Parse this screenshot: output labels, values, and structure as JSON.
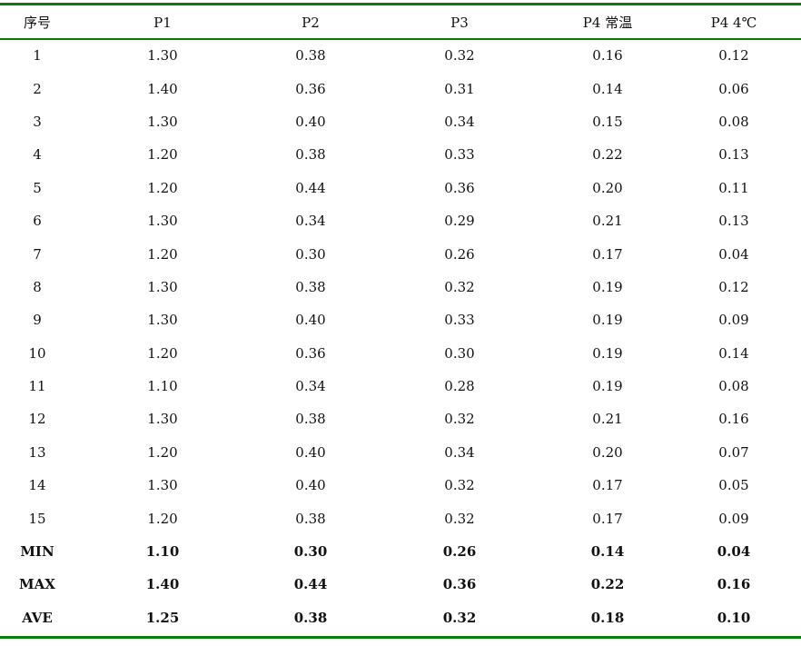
{
  "table": {
    "headers": [
      "序号",
      "P1",
      "P2",
      "P3",
      "P4 常温",
      "P4 4℃"
    ],
    "rows": [
      [
        "1",
        "1.30",
        "0.38",
        "0.32",
        "0.16",
        "0.12"
      ],
      [
        "2",
        "1.40",
        "0.36",
        "0.31",
        "0.14",
        "0.06"
      ],
      [
        "3",
        "1.30",
        "0.40",
        "0.34",
        "0.15",
        "0.08"
      ],
      [
        "4",
        "1.20",
        "0.38",
        "0.33",
        "0.22",
        "0.13"
      ],
      [
        "5",
        "1.20",
        "0.44",
        "0.36",
        "0.20",
        "0.11"
      ],
      [
        "6",
        "1.30",
        "0.34",
        "0.29",
        "0.21",
        "0.13"
      ],
      [
        "7",
        "1.20",
        "0.30",
        "0.26",
        "0.17",
        "0.04"
      ],
      [
        "8",
        "1.30",
        "0.38",
        "0.32",
        "0.19",
        "0.12"
      ],
      [
        "9",
        "1.30",
        "0.40",
        "0.33",
        "0.19",
        "0.09"
      ],
      [
        "10",
        "1.20",
        "0.36",
        "0.30",
        "0.19",
        "0.14"
      ],
      [
        "11",
        "1.10",
        "0.34",
        "0.28",
        "0.19",
        "0.08"
      ],
      [
        "12",
        "1.30",
        "0.38",
        "0.32",
        "0.21",
        "0.16"
      ],
      [
        "13",
        "1.20",
        "0.40",
        "0.34",
        "0.20",
        "0.07"
      ],
      [
        "14",
        "1.30",
        "0.40",
        "0.32",
        "0.17",
        "0.05"
      ],
      [
        "15",
        "1.20",
        "0.38",
        "0.32",
        "0.17",
        "0.09"
      ]
    ],
    "summary_rows": [
      [
        "MIN",
        "1.10",
        "0.30",
        "0.26",
        "0.14",
        "0.04"
      ],
      [
        "MAX",
        "1.40",
        "0.44",
        "0.36",
        "0.22",
        "0.16"
      ],
      [
        "AVE",
        "1.25",
        "0.38",
        "0.32",
        "0.18",
        "0.10"
      ]
    ],
    "rule_color": "#0a7a0a"
  }
}
